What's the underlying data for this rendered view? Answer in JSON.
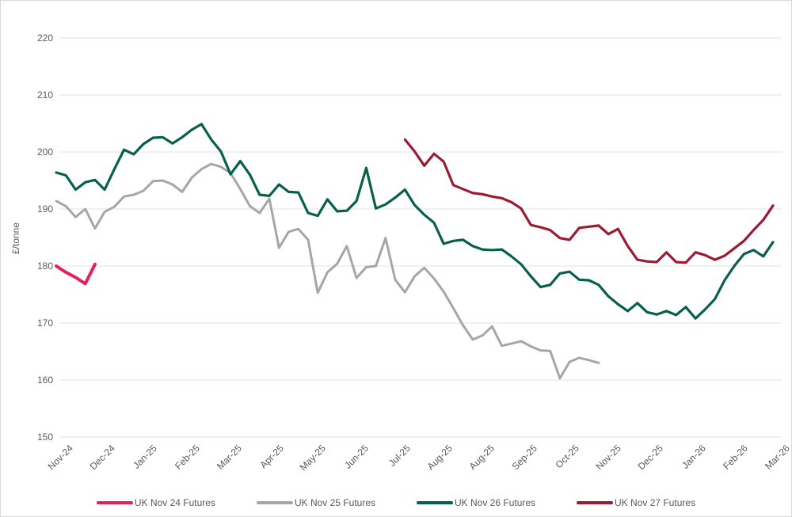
{
  "chart_data": {
    "type": "line",
    "title": "",
    "ylabel": "£/tonne",
    "ylim": [
      150,
      220
    ],
    "y_ticks": [
      150,
      160,
      170,
      180,
      190,
      200,
      210,
      220
    ],
    "x_tick_labels": [
      "Nov-24",
      "Dec-24",
      "Jan-25",
      "Feb-25",
      "Mar-25",
      "Apr-25",
      "May-25",
      "Jun-25",
      "Jul-25",
      "Aug-25",
      "Aug-25",
      "Sep-25",
      "Oct-25",
      "Nov-25",
      "Dec-25",
      "Jan-26",
      "Feb-26",
      "Mar-26"
    ],
    "x_cadence": "weekly",
    "total_weeks": 74,
    "grid": true,
    "grid_color": "#e3e3e3",
    "text_color": "#595959",
    "legend_position": "bottom",
    "series": [
      {
        "name": "UK Nov 24 Futures",
        "color": "#e72157",
        "start_week": 0,
        "values": [
          180.0,
          178.9,
          178.0,
          176.9,
          180.3
        ]
      },
      {
        "name": "UK Nov 25 Futures",
        "color": "#a6a6a6",
        "start_week": 0,
        "values": [
          191.4,
          190.5,
          188.6,
          190.0,
          186.6,
          189.5,
          190.4,
          192.2,
          192.5,
          193.2,
          194.9,
          195.0,
          194.3,
          193.0,
          195.5,
          197.0,
          197.9,
          197.4,
          196.3,
          193.5,
          190.5,
          189.3,
          191.8,
          183.2,
          186.0,
          186.5,
          184.6,
          175.3,
          178.9,
          180.4,
          183.5,
          177.9,
          179.8,
          180.0,
          184.9,
          177.6,
          175.4,
          178.2,
          179.7,
          177.8,
          175.5,
          172.6,
          169.6,
          167.1,
          167.8,
          169.4,
          166.0,
          166.4,
          166.8,
          165.9,
          165.2,
          165.1,
          160.3,
          163.2,
          163.9,
          163.5,
          163.0
        ]
      },
      {
        "name": "UK Nov 26 Futures",
        "color": "#07604a",
        "start_week": 0,
        "values": [
          196.4,
          195.9,
          193.4,
          194.7,
          195.1,
          193.4,
          197.0,
          200.4,
          199.6,
          201.4,
          202.5,
          202.6,
          201.5,
          202.6,
          203.9,
          204.9,
          202.2,
          200.1,
          196.1,
          198.4,
          196.0,
          192.5,
          192.3,
          194.3,
          193.0,
          192.9,
          189.3,
          188.8,
          191.7,
          189.6,
          189.7,
          191.4,
          197.2,
          190.1,
          190.8,
          192.0,
          193.4,
          190.7,
          189.0,
          187.6,
          183.9,
          184.4,
          184.6,
          183.5,
          182.9,
          182.8,
          182.9,
          181.7,
          180.3,
          178.2,
          176.3,
          176.7,
          178.7,
          179.0,
          177.6,
          177.5,
          176.7,
          174.7,
          173.3,
          172.1,
          173.5,
          171.9,
          171.5,
          172.1,
          171.4,
          172.8,
          170.8,
          172.4,
          174.2,
          177.5,
          180.0,
          182.1,
          182.8,
          181.7,
          184.2
        ]
      },
      {
        "name": "UK Nov 27 Futures",
        "color": "#9b1b33",
        "start_week": 36,
        "values": [
          202.2,
          200.1,
          197.6,
          199.7,
          198.3,
          194.2,
          193.5,
          192.8,
          192.6,
          192.2,
          191.9,
          191.2,
          190.1,
          187.2,
          186.8,
          186.3,
          184.9,
          184.6,
          186.7,
          186.9,
          187.1,
          185.6,
          186.5,
          183.5,
          181.1,
          180.8,
          180.7,
          182.4,
          180.7,
          180.6,
          182.4,
          181.9,
          181.1,
          181.8,
          183.1,
          184.4,
          186.3,
          188.1,
          190.6
        ]
      }
    ]
  }
}
